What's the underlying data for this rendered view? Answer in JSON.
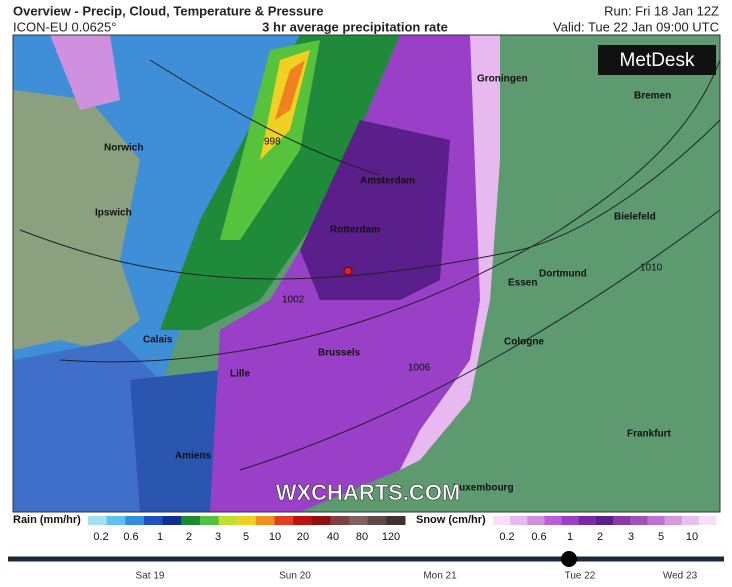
{
  "header": {
    "title": "Overview - Precip, Cloud, Temperature & Pressure",
    "model": "ICON-EU 0.0625°",
    "subtitle": "3 hr average precipitation rate",
    "run": "Run: Fri 18 Jan 12Z",
    "valid": "Valid: Tue 22 Jan 09:00 UTC",
    "logo": "MetDesk"
  },
  "map": {
    "cities": [
      "Groningen",
      "Bremen",
      "Norwich",
      "Amsterdam",
      "Ipswich",
      "Rotterdam",
      "Bielefeld",
      "Dortmund",
      "Essen",
      "Calais",
      "Cologne",
      "Brussels",
      "Lille",
      "Frankfurt",
      "Amiens",
      "Luxembourg"
    ],
    "isobars": [
      "998",
      "1002",
      "1006",
      "1010"
    ],
    "watermark": "WXCHARTS.COM"
  },
  "legend": {
    "rain": {
      "label": "Rain (mm/hr)",
      "ticks": [
        "0.2",
        "0.6",
        "1",
        "2",
        "3",
        "5",
        "10",
        "20",
        "40",
        "80",
        "120"
      ]
    },
    "snow": {
      "label": "Snow (cm/hr)",
      "ticks": [
        "0.2",
        "0.6",
        "1",
        "2",
        "3",
        "5",
        "10"
      ]
    }
  },
  "timeline": {
    "days": [
      "Sat 19",
      "Sun 20",
      "Mon 21",
      "Tue 22",
      "Wed 23"
    ]
  }
}
